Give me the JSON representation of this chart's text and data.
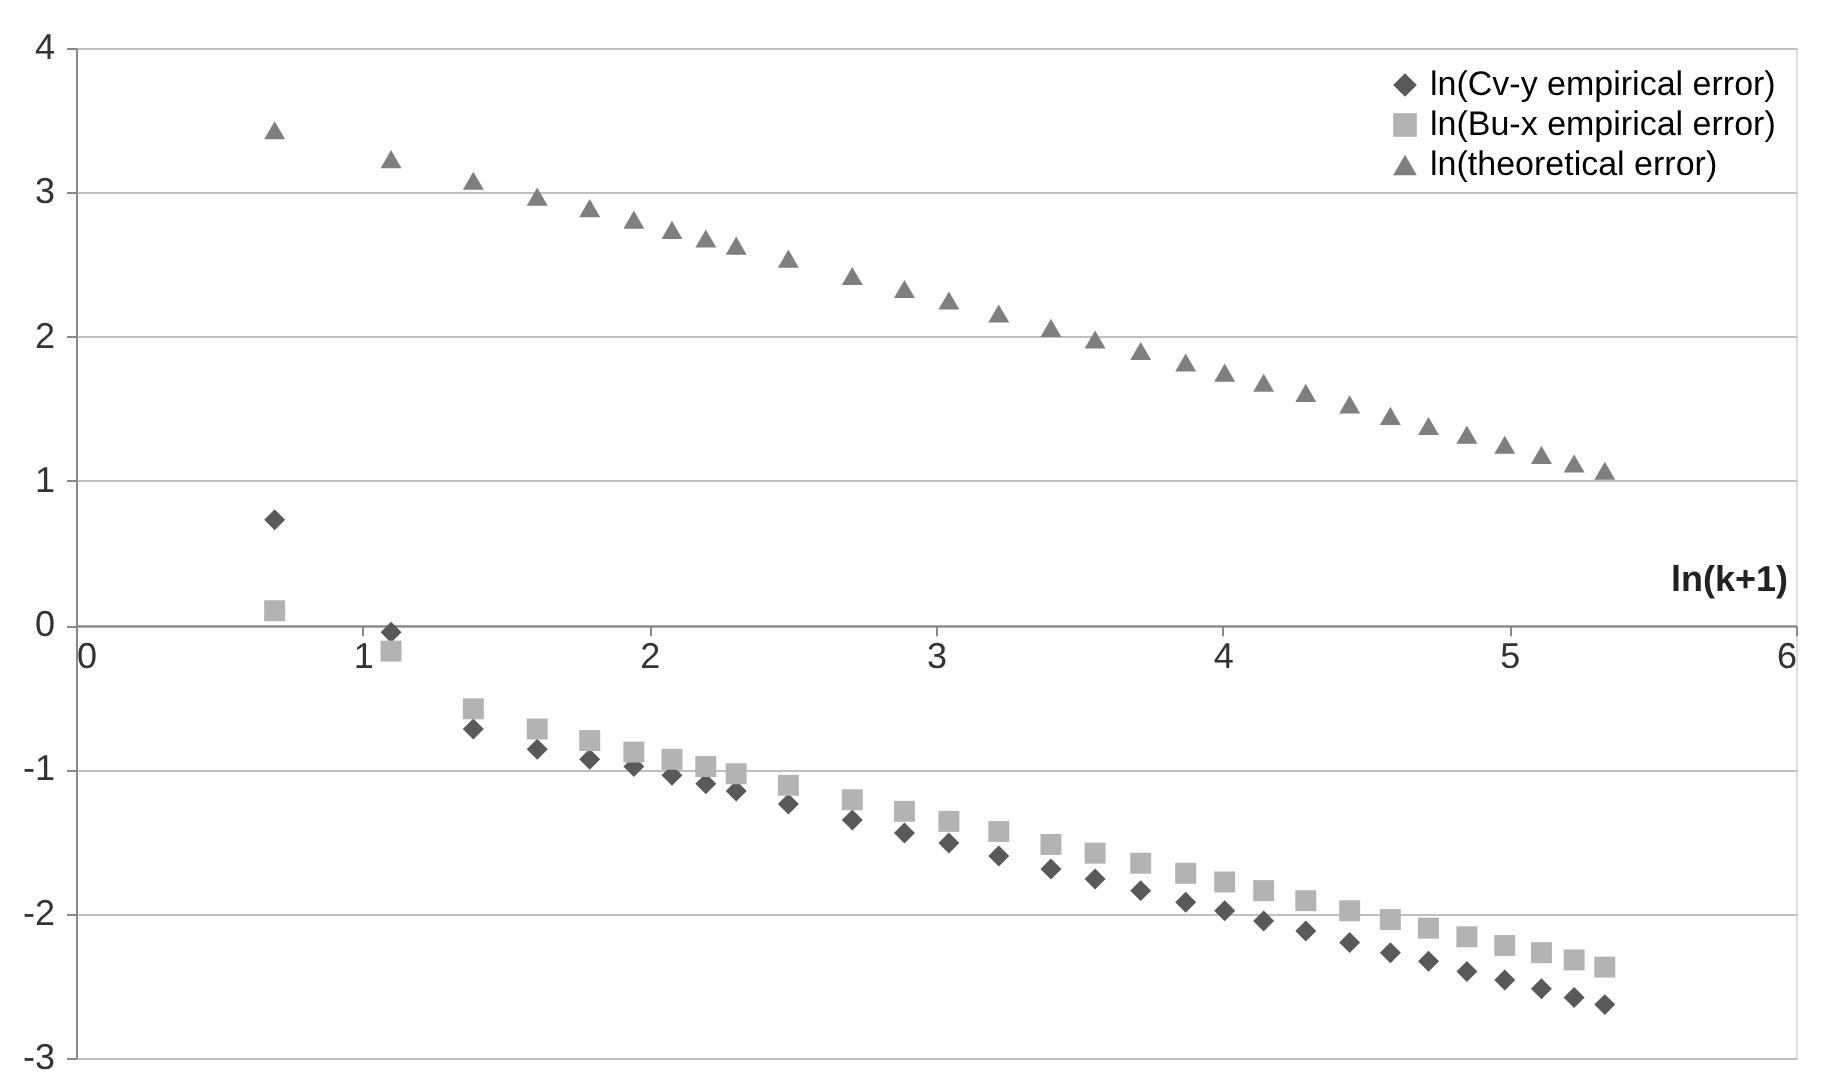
{
  "chart_data": {
    "type": "scatter",
    "xlabel": "ln(k+1)",
    "xlim": [
      0,
      6
    ],
    "xticks": [
      0,
      1,
      2,
      3,
      4,
      5,
      6
    ],
    "ylim": [
      -3,
      4
    ],
    "yticks": [
      -3,
      -2,
      -1,
      0,
      1,
      2,
      3,
      4
    ],
    "grid": "y",
    "legend": "top right",
    "x": [
      0.693,
      1.099,
      1.386,
      1.609,
      1.792,
      1.946,
      2.079,
      2.197,
      2.303,
      2.485,
      2.708,
      2.89,
      3.045,
      3.219,
      3.401,
      3.555,
      3.714,
      3.871,
      4.007,
      4.143,
      4.29,
      4.443,
      4.585,
      4.718,
      4.852,
      4.984,
      5.112,
      5.226,
      5.333
    ],
    "series": [
      {
        "name": "ln(Cv-y empirical error)",
        "color": "#595959",
        "marker": "diamond",
        "values": [
          0.73,
          -0.05,
          -0.72,
          -0.86,
          -0.93,
          -0.98,
          -1.04,
          -1.1,
          -1.15,
          -1.24,
          -1.35,
          -1.44,
          -1.51,
          -1.6,
          -1.69,
          -1.76,
          -1.84,
          -1.92,
          -1.98,
          -2.05,
          -2.12,
          -2.2,
          -2.27,
          -2.33,
          -2.4,
          -2.46,
          -2.52,
          -2.58,
          -2.63
        ]
      },
      {
        "name": "ln(Bu-x empirical error)",
        "color": "#b3b3b3",
        "marker": "square",
        "values": [
          0.1,
          -0.18,
          -0.58,
          -0.72,
          -0.8,
          -0.88,
          -0.93,
          -0.98,
          -1.03,
          -1.11,
          -1.21,
          -1.29,
          -1.36,
          -1.43,
          -1.52,
          -1.58,
          -1.65,
          -1.72,
          -1.78,
          -1.84,
          -1.91,
          -1.98,
          -2.04,
          -2.1,
          -2.16,
          -2.22,
          -2.27,
          -2.32,
          -2.37
        ]
      },
      {
        "name": "ln(theoretical error)",
        "color": "#7f7f7f",
        "marker": "triangle",
        "values": [
          3.43,
          3.23,
          3.08,
          2.97,
          2.89,
          2.81,
          2.74,
          2.68,
          2.63,
          2.54,
          2.42,
          2.33,
          2.25,
          2.16,
          2.06,
          1.98,
          1.9,
          1.82,
          1.75,
          1.68,
          1.61,
          1.53,
          1.45,
          1.38,
          1.32,
          1.25,
          1.18,
          1.12,
          1.07
        ]
      }
    ]
  }
}
